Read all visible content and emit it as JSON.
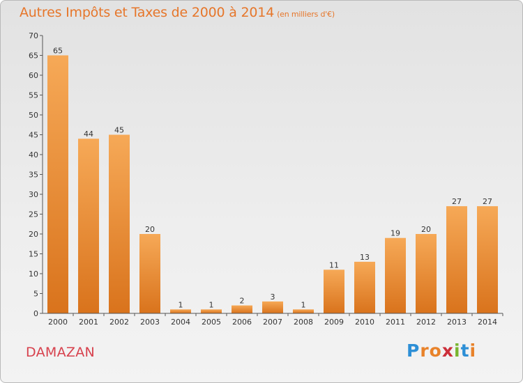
{
  "header": {
    "title": "Autres Impôts et Taxes de 2000 à 2014",
    "unit": "(en milliers d'€)"
  },
  "footer": {
    "town": "DAMAZAN",
    "logo": "Proxiti"
  },
  "colors": {
    "bar_top": "#f6a957",
    "bar_bottom": "#d9731c",
    "title": "#e6762a",
    "town": "#d7414d",
    "logo_letters": [
      "#2d8fd6",
      "#e8822a",
      "#e8822a",
      "#cc2f3a",
      "#79b530",
      "#2d8fd6",
      "#e8822a"
    ]
  },
  "chart_data": {
    "type": "bar",
    "title": "Autres Impôts et Taxes de 2000 à 2014",
    "subtitle": "(en milliers d'€)",
    "xlabel": "",
    "ylabel": "",
    "categories": [
      "2000",
      "2001",
      "2002",
      "2003",
      "2004",
      "2005",
      "2006",
      "2007",
      "2008",
      "2009",
      "2010",
      "2011",
      "2012",
      "2013",
      "2014"
    ],
    "values": [
      65,
      44,
      45,
      20,
      1,
      1,
      2,
      3,
      1,
      11,
      13,
      19,
      20,
      27,
      27
    ],
    "ylim": [
      0,
      70
    ],
    "yticks": [
      0,
      5,
      10,
      15,
      20,
      25,
      30,
      35,
      40,
      45,
      50,
      55,
      60,
      65,
      70
    ],
    "grid": false,
    "data_labels": true
  }
}
